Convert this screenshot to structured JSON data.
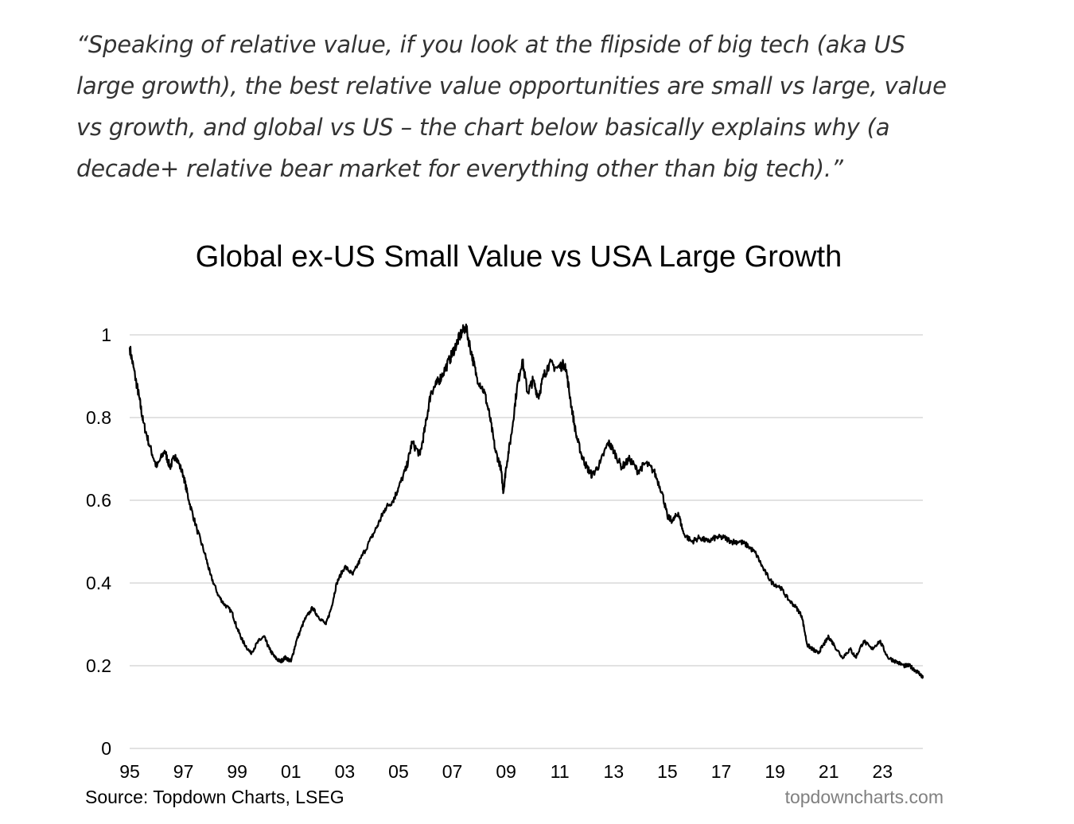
{
  "quote": "“Speaking of relative value, if you look at the flipside of big tech (aka US large growth), the best relative value opportunities are small vs large, value vs growth, and global vs US – the chart below basically explains why (a decade+ relative bear market for everything other than big tech).”",
  "footer": {
    "source": "Source: Topdown Charts, LSEG",
    "credit": "topdowncharts.com"
  },
  "chart_data": {
    "type": "line",
    "title": "Global ex-US Small Value vs USA Large Growth",
    "xlabel": "",
    "ylabel": "",
    "xlim": [
      1995.0,
      2024.5
    ],
    "ylim": [
      0,
      1
    ],
    "y_ticks": [
      0,
      0.2,
      0.4,
      0.6,
      0.8,
      1
    ],
    "y_tick_labels": [
      "0",
      "0.2",
      "0.4",
      "0.6",
      "0.8",
      "1"
    ],
    "x_ticks": [
      1995,
      1997,
      1999,
      2001,
      2003,
      2005,
      2007,
      2009,
      2011,
      2013,
      2015,
      2017,
      2019,
      2021,
      2023
    ],
    "x_tick_labels": [
      "95",
      "97",
      "99",
      "01",
      "03",
      "05",
      "07",
      "09",
      "11",
      "13",
      "15",
      "17",
      "19",
      "21",
      "23"
    ],
    "grid": "horizontal",
    "legend": "none",
    "line_color": "#000000",
    "series": [
      {
        "x": [
          1995.0,
          1995.2,
          1995.35,
          1995.5,
          1995.75,
          1996.0,
          1996.3,
          1996.5,
          1996.7,
          1997.0,
          1997.2,
          1997.5,
          1997.8,
          1998.0,
          1998.3,
          1998.5,
          1998.8,
          1999.0,
          1999.2,
          1999.5,
          1999.8,
          2000.0,
          2000.2,
          2000.4,
          2000.6,
          2000.8,
          2001.0,
          2001.2,
          2001.5,
          2001.8,
          2002.0,
          2002.3,
          2002.5,
          2002.7,
          2003.0,
          2003.3,
          2003.6,
          2004.0,
          2004.3,
          2004.5,
          2004.8,
          2005.0,
          2005.3,
          2005.5,
          2005.8,
          2006.0,
          2006.2,
          2006.4,
          2006.6,
          2006.9,
          2007.1,
          2007.3,
          2007.5,
          2007.7,
          2007.9,
          2008.2,
          2008.4,
          2008.6,
          2008.8,
          2008.9,
          2009.0,
          2009.2,
          2009.4,
          2009.6,
          2009.8,
          2010.0,
          2010.2,
          2010.4,
          2010.6,
          2010.9,
          2011.2,
          2011.4,
          2011.6,
          2011.8,
          2012.0,
          2012.2,
          2012.5,
          2012.8,
          2013.0,
          2013.3,
          2013.6,
          2013.9,
          2014.2,
          2014.5,
          2014.8,
          2015.0,
          2015.2,
          2015.4,
          2015.6,
          2015.9,
          2016.2,
          2016.5,
          2016.8,
          2017.1,
          2017.4,
          2017.7,
          2018.0,
          2018.3,
          2018.6,
          2018.9,
          2019.2,
          2019.5,
          2019.8,
          2020.0,
          2020.2,
          2020.4,
          2020.6,
          2020.8,
          2021.0,
          2021.2,
          2021.5,
          2021.8,
          2022.0,
          2022.3,
          2022.6,
          2022.9,
          2023.2,
          2023.5,
          2023.8,
          2024.0,
          2024.2,
          2024.4,
          2024.5
        ],
        "y": [
          0.97,
          0.9,
          0.85,
          0.79,
          0.73,
          0.68,
          0.72,
          0.68,
          0.71,
          0.66,
          0.6,
          0.53,
          0.47,
          0.42,
          0.37,
          0.35,
          0.33,
          0.29,
          0.26,
          0.23,
          0.26,
          0.27,
          0.24,
          0.22,
          0.21,
          0.22,
          0.21,
          0.26,
          0.31,
          0.34,
          0.32,
          0.3,
          0.34,
          0.4,
          0.44,
          0.42,
          0.46,
          0.51,
          0.55,
          0.58,
          0.6,
          0.63,
          0.68,
          0.74,
          0.71,
          0.78,
          0.86,
          0.88,
          0.9,
          0.94,
          0.97,
          1.0,
          1.02,
          0.96,
          0.9,
          0.86,
          0.8,
          0.72,
          0.68,
          0.62,
          0.68,
          0.76,
          0.87,
          0.94,
          0.86,
          0.89,
          0.85,
          0.9,
          0.93,
          0.92,
          0.93,
          0.84,
          0.76,
          0.71,
          0.68,
          0.66,
          0.69,
          0.74,
          0.72,
          0.68,
          0.7,
          0.67,
          0.69,
          0.67,
          0.62,
          0.56,
          0.55,
          0.57,
          0.52,
          0.5,
          0.51,
          0.5,
          0.51,
          0.51,
          0.5,
          0.5,
          0.49,
          0.47,
          0.43,
          0.4,
          0.39,
          0.36,
          0.34,
          0.32,
          0.25,
          0.24,
          0.23,
          0.25,
          0.27,
          0.25,
          0.22,
          0.24,
          0.22,
          0.26,
          0.24,
          0.26,
          0.22,
          0.21,
          0.2,
          0.2,
          0.19,
          0.18,
          0.17
        ]
      }
    ]
  }
}
